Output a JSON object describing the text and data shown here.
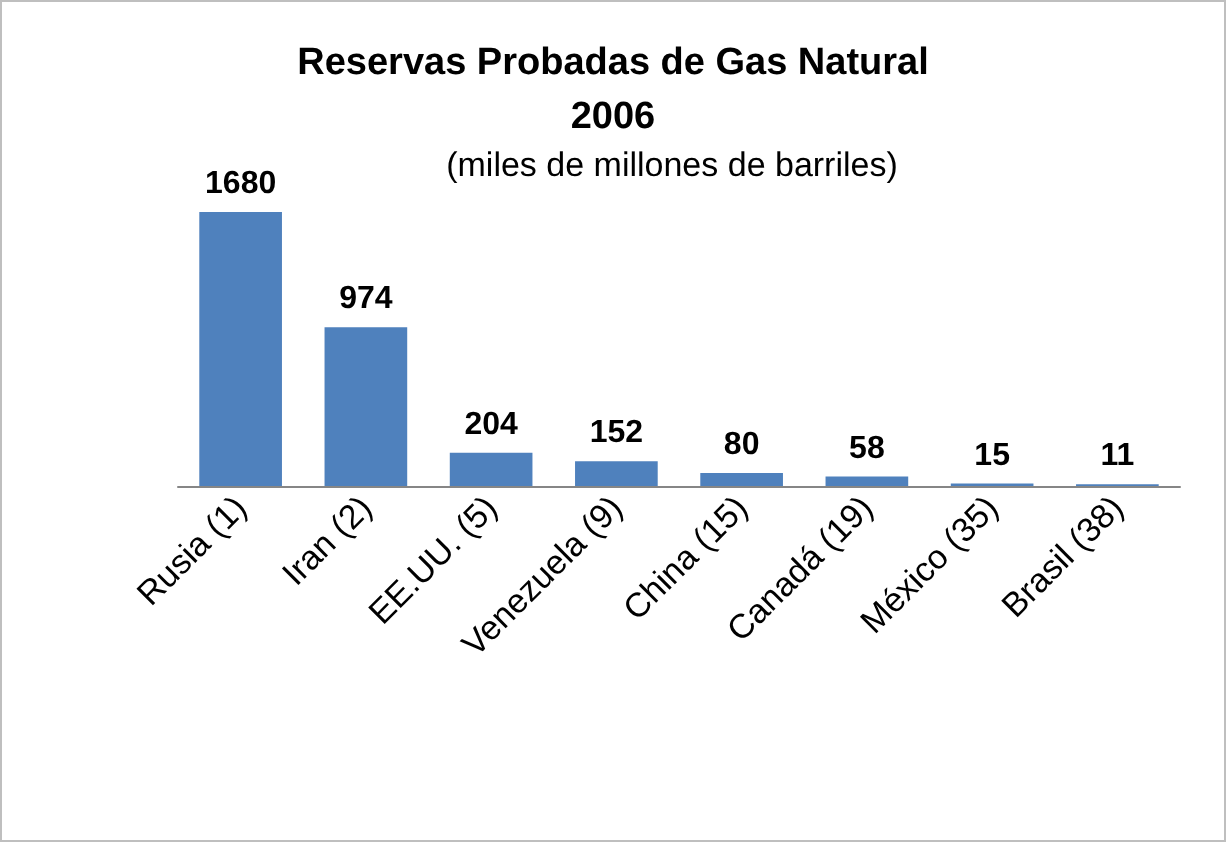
{
  "chart_data": {
    "type": "bar",
    "title": "Reservas Probadas de Gas Natural\n2006",
    "subtitle": "(miles de millones de barriles)",
    "categories": [
      "Rusia (1)",
      "Iran (2)",
      "EE.UU. (5)",
      "Venezuela (9)",
      "China (15)",
      "Canadá (19)",
      "México (35)",
      "Brasil (38)"
    ],
    "values": [
      1680,
      974,
      204,
      152,
      80,
      58,
      15,
      11
    ],
    "color": "#4f81bd",
    "data_labels": true
  }
}
